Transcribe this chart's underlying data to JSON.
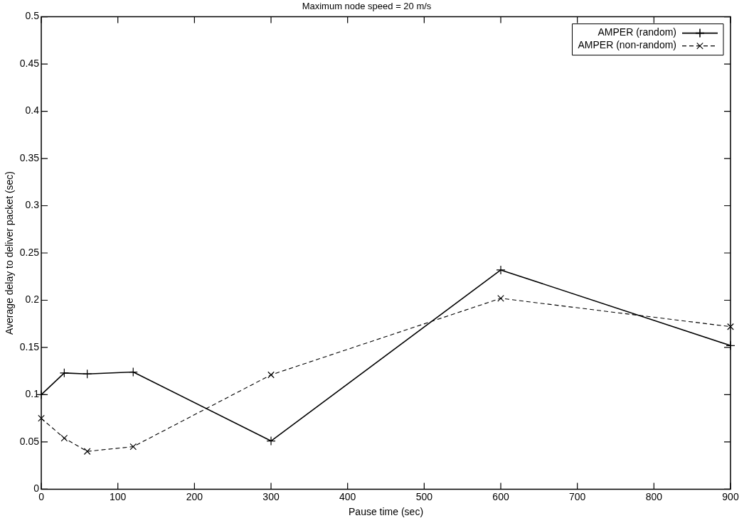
{
  "chart_data": {
    "type": "line",
    "title": "Maximum node speed = 20 m/s",
    "xlabel": "Pause time (sec)",
    "ylabel": "Average delay to deliver packet (sec)",
    "x": [
      0,
      30,
      60,
      120,
      300,
      600,
      900
    ],
    "series": [
      {
        "name": "AMPER (random)",
        "color": "#000000",
        "marker": "cross",
        "line_style": "solid",
        "values": [
          0.1,
          0.123,
          0.122,
          0.124,
          0.051,
          0.232,
          0.152
        ]
      },
      {
        "name": "AMPER (non-random)",
        "color": "#000000",
        "marker": "x",
        "line_style": "dashed",
        "values": [
          0.075,
          0.054,
          0.04,
          0.045,
          0.121,
          0.202,
          0.172
        ]
      }
    ],
    "xlim": [
      0,
      900
    ],
    "xticks": [
      0,
      100,
      200,
      300,
      400,
      500,
      600,
      700,
      800,
      900
    ],
    "ylim": [
      0,
      0.5
    ],
    "yticks": [
      0,
      0.05,
      0.1,
      0.15,
      0.2,
      0.25,
      0.3,
      0.35,
      0.4,
      0.45,
      0.5
    ],
    "grid": false,
    "legend": "top right"
  }
}
